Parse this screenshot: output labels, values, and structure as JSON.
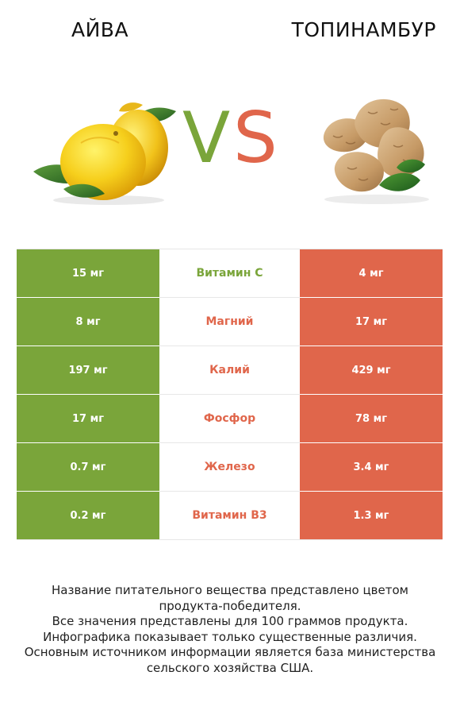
{
  "header": {
    "left_title": "АЙВА",
    "right_title": "ТОПИНАМБУР"
  },
  "vs": {
    "v": "V",
    "s": "S"
  },
  "colors": {
    "left": "#7aa53a",
    "right": "#e0664b"
  },
  "rows": [
    {
      "left": "15 мг",
      "name": "Витамин C",
      "right": "4 мг",
      "winner": "left"
    },
    {
      "left": "8 мг",
      "name": "Магний",
      "right": "17 мг",
      "winner": "right"
    },
    {
      "left": "197 мг",
      "name": "Калий",
      "right": "429 мг",
      "winner": "right"
    },
    {
      "left": "17 мг",
      "name": "Фосфор",
      "right": "78 мг",
      "winner": "right"
    },
    {
      "left": "0.7 мг",
      "name": "Железо",
      "right": "3.4 мг",
      "winner": "right"
    },
    {
      "left": "0.2 мг",
      "name": "Витамин B3",
      "right": "1.3 мг",
      "winner": "right"
    }
  ],
  "footer": {
    "line1": "Название питательного вещества представлено цветом",
    "line2": "продукта-победителя.",
    "line3": "Все значения представлены для 100 граммов продукта.",
    "line4": "Инфографика показывает только существенные различия.",
    "line5": "Основным источником информации является база министерства",
    "line6": "сельского хозяйства США."
  }
}
